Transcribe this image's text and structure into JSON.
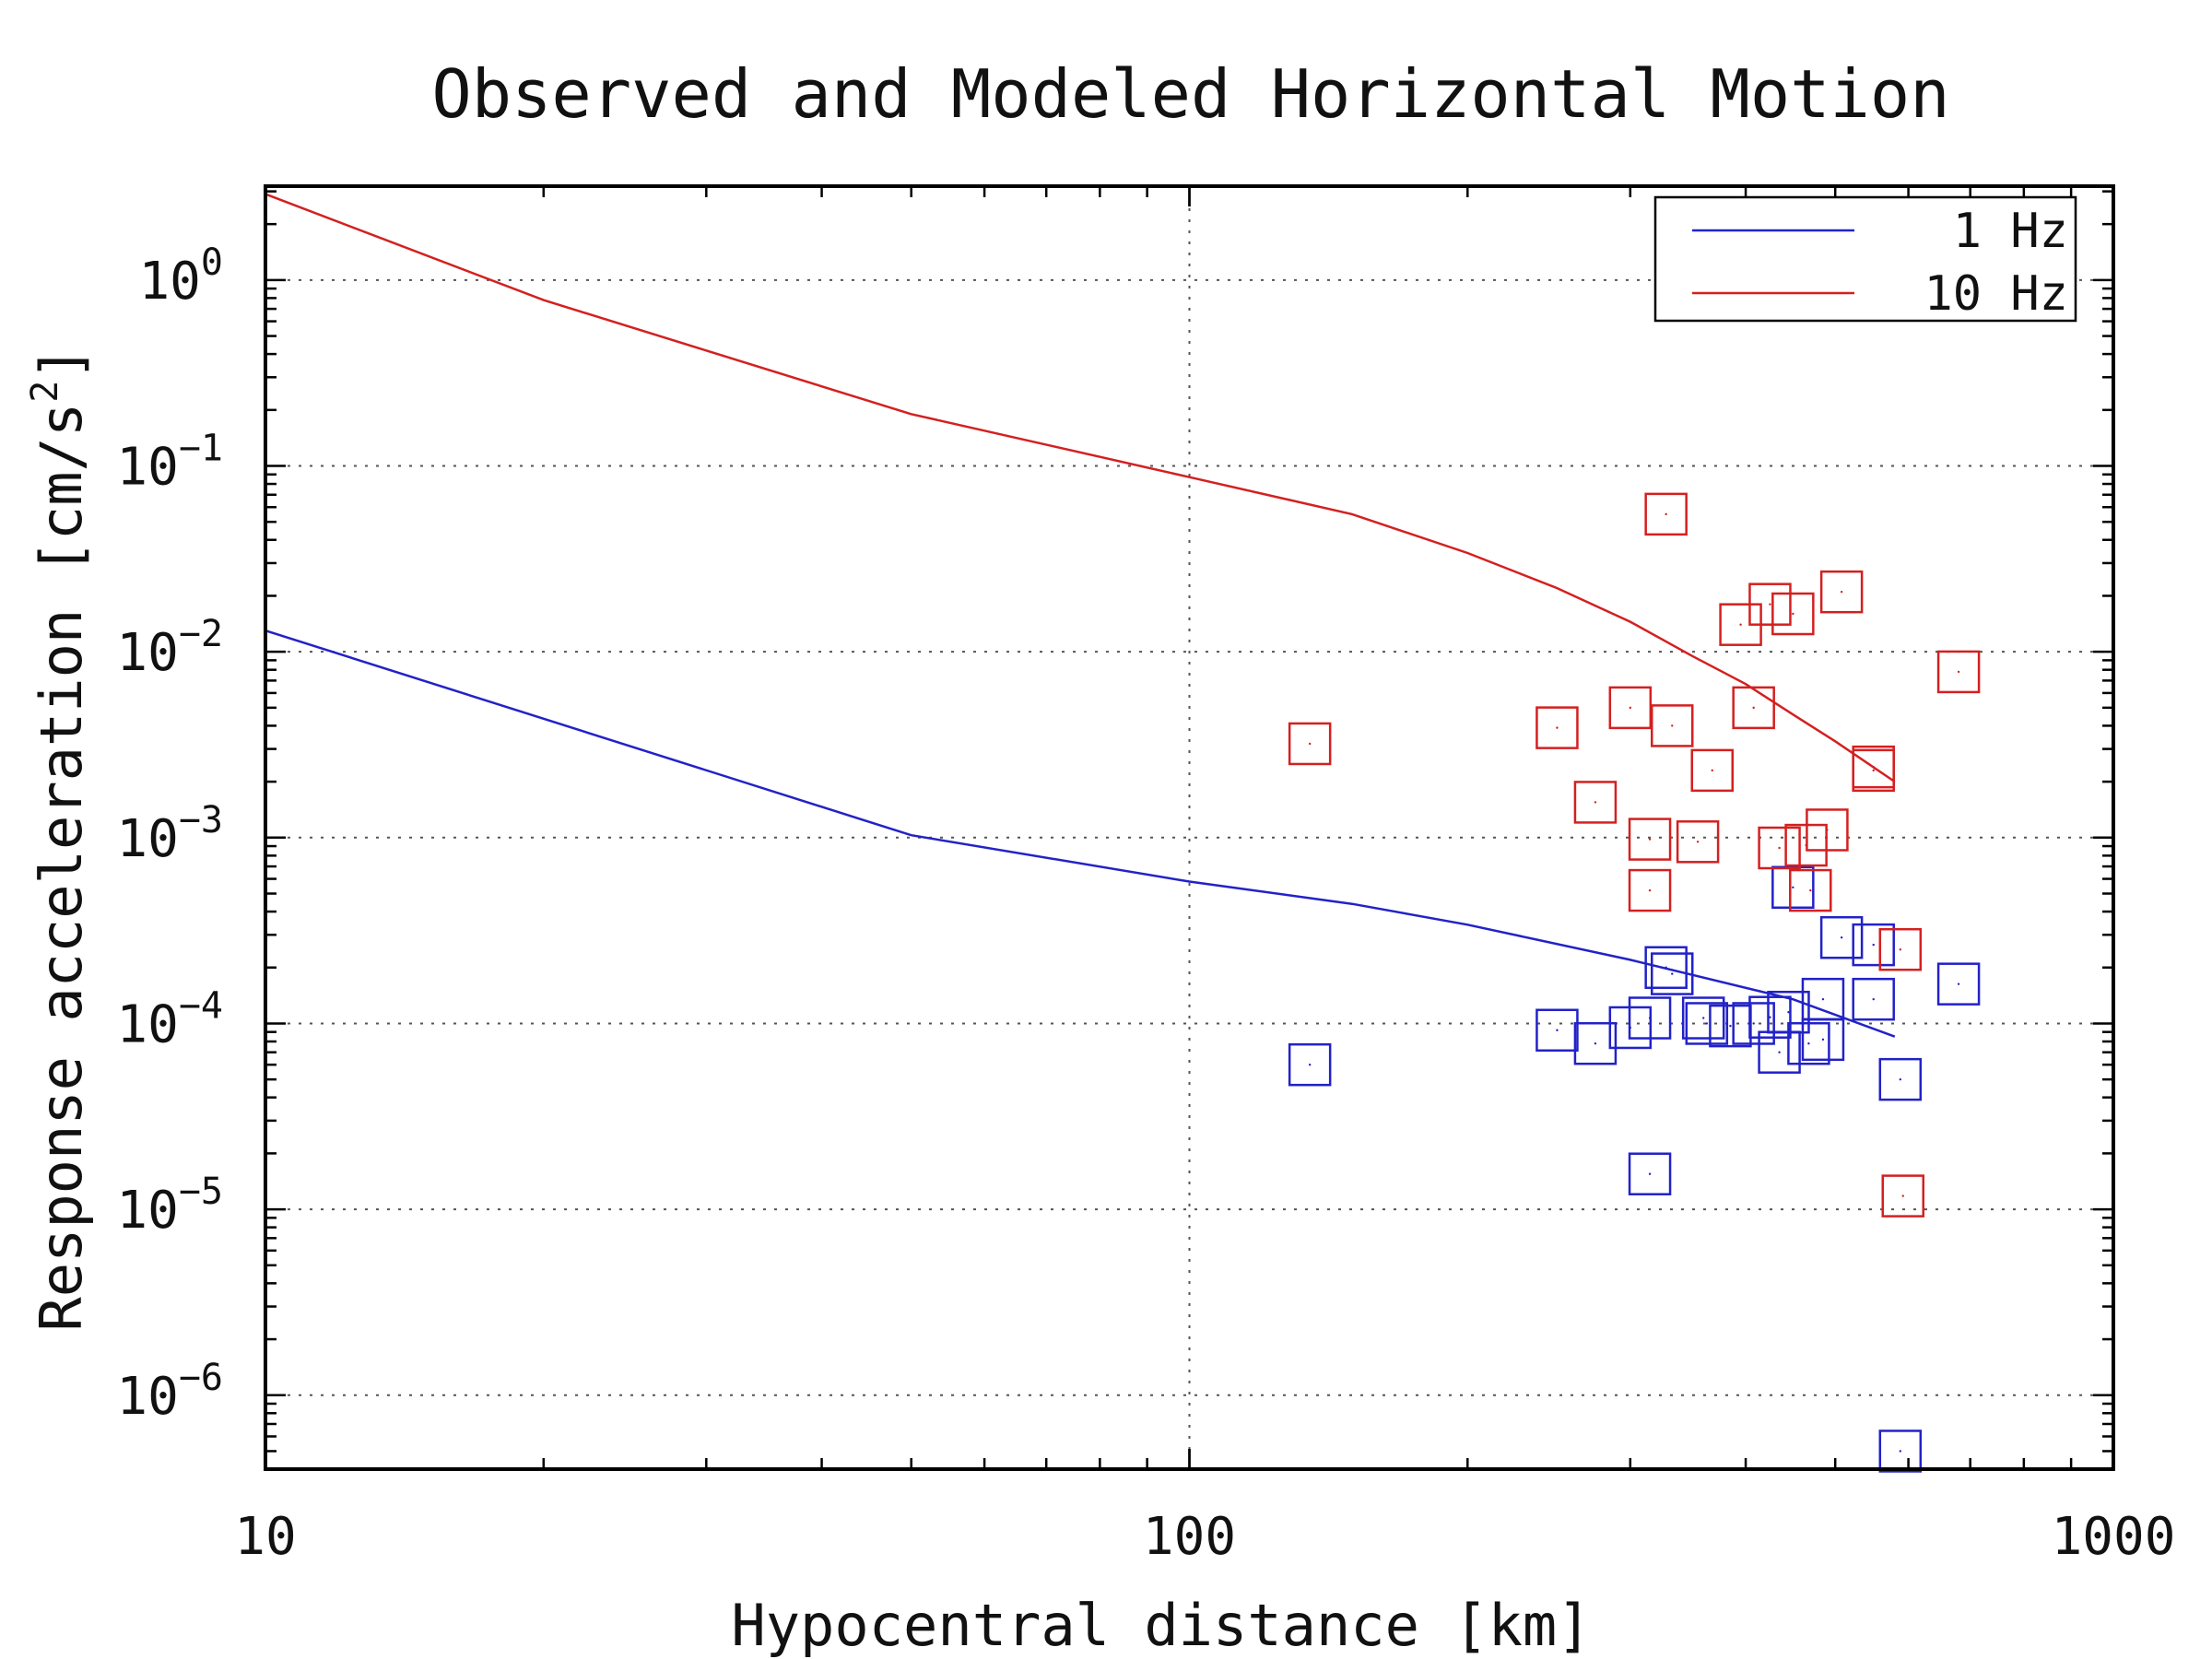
{
  "chart_data": {
    "type": "scatter",
    "title": "Observed and Modeled Horizontal Motion",
    "xlabel": "Hypocentral distance [km]",
    "ylabel": "Response acceleration [cm/s",
    "ylabel_sup": "2",
    "ylabel_end": "]",
    "x_scale": "log",
    "y_scale": "log",
    "xlim": [
      10,
      1000
    ],
    "ylim": [
      4e-07,
      3.2
    ],
    "grid": true,
    "legend_position": "top-right",
    "x_ticks": [
      {
        "value": 10,
        "label": "10"
      },
      {
        "value": 100,
        "label": "100"
      },
      {
        "value": 1000,
        "label": "1000"
      }
    ],
    "y_ticks": [
      {
        "value": 1,
        "base": "10",
        "exp": "0"
      },
      {
        "value": 0.1,
        "base": "10",
        "exp": "−1"
      },
      {
        "value": 0.01,
        "base": "10",
        "exp": "−2"
      },
      {
        "value": 0.001,
        "base": "10",
        "exp": "−3"
      },
      {
        "value": 0.0001,
        "base": "10",
        "exp": "−4"
      },
      {
        "value": 1e-05,
        "base": "10",
        "exp": "−5"
      },
      {
        "value": 1e-06,
        "base": "10",
        "exp": "−6"
      }
    ],
    "series": [
      {
        "name": "1 Hz",
        "color": "#2222c8",
        "model": [
          [
            10,
            0.013
          ],
          [
            50,
            0.00103
          ],
          [
            100,
            0.00058
          ],
          [
            150,
            0.00044
          ],
          [
            200,
            0.00034
          ],
          [
            300,
            0.00022
          ],
          [
            450,
            0.000135
          ],
          [
            580,
            8.5e-05
          ]
        ],
        "observed": [
          [
            135,
            6e-05
          ],
          [
            250,
            9.2e-05
          ],
          [
            275,
            7.8e-05
          ],
          [
            300,
            9.5e-05
          ],
          [
            315,
            0.000107
          ],
          [
            315,
            1.55e-05
          ],
          [
            328,
            0.0002
          ],
          [
            333,
            0.000185
          ],
          [
            360,
            0.000107
          ],
          [
            363,
            0.0001
          ],
          [
            385,
            9.7e-05
          ],
          [
            408,
            0.0001
          ],
          [
            425,
            0.000108
          ],
          [
            435,
            7e-05
          ],
          [
            445,
            0.000115
          ],
          [
            450,
            0.00054
          ],
          [
            468,
            7.8e-05
          ],
          [
            485,
            8.2e-05
          ],
          [
            485,
            0.000135
          ],
          [
            508,
            0.00029
          ],
          [
            550,
            0.000265
          ],
          [
            550,
            0.000135
          ],
          [
            588,
            5e-05
          ],
          [
            588,
            5e-07
          ],
          [
            680,
            0.000163
          ]
        ]
      },
      {
        "name": "10 Hz",
        "color": "#d42020",
        "model": [
          [
            10,
            2.9
          ],
          [
            20,
            0.78
          ],
          [
            50,
            0.19
          ],
          [
            100,
            0.087
          ],
          [
            150,
            0.055
          ],
          [
            200,
            0.034
          ],
          [
            250,
            0.022
          ],
          [
            300,
            0.0145
          ],
          [
            350,
            0.0095
          ],
          [
            400,
            0.0067
          ],
          [
            450,
            0.0046
          ],
          [
            500,
            0.0033
          ],
          [
            580,
            0.002
          ]
        ],
        "observed": [
          [
            135,
            0.0032
          ],
          [
            250,
            0.0039
          ],
          [
            275,
            0.00155
          ],
          [
            300,
            0.005
          ],
          [
            315,
            0.00098
          ],
          [
            315,
            0.00052
          ],
          [
            328,
            0.055
          ],
          [
            333,
            0.004
          ],
          [
            355,
            0.00095
          ],
          [
            368,
            0.0023
          ],
          [
            395,
            0.014
          ],
          [
            408,
            0.005
          ],
          [
            425,
            0.018
          ],
          [
            435,
            0.00088
          ],
          [
            450,
            0.016
          ],
          [
            465,
            0.00091
          ],
          [
            470,
            0.00052
          ],
          [
            490,
            0.0011
          ],
          [
            508,
            0.021
          ],
          [
            550,
            0.0024
          ],
          [
            550,
            0.0023
          ],
          [
            588,
            0.00025
          ],
          [
            592,
            1.18e-05
          ],
          [
            680,
            0.0078
          ]
        ]
      }
    ]
  }
}
